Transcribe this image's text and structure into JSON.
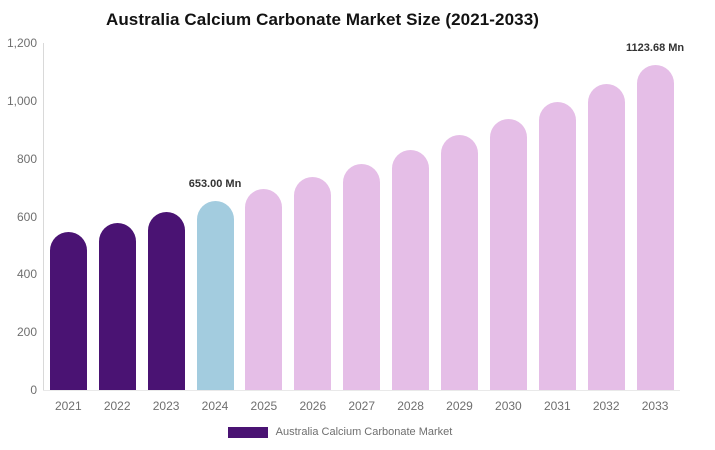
{
  "title": "Australia Calcium Carbonate Market Size (2021-2033)",
  "colors": {
    "historical_bar": "#4A1373",
    "current_bar": "#A3CCDF",
    "forecast_bar": "#E5BEE7",
    "axis_line": "#d9d9d9",
    "tick_text": "#6f6f6f",
    "title_text": "#121212",
    "data_label_text": "#333333"
  },
  "y_axis": {
    "ticks": [
      "1,200",
      "1,000",
      "800",
      "600",
      "400",
      "200",
      "0"
    ]
  },
  "legend": {
    "label": "Australia Calcium Carbonate Market",
    "swatch_color": "#4A1373"
  },
  "chart_data": {
    "type": "bar",
    "title": "Australia Calcium Carbonate Market Size (2021-2033)",
    "xlabel": "",
    "ylabel": "",
    "ylim": [
      0,
      1200
    ],
    "grid": false,
    "legend_position": "bottom",
    "unit": "Mn",
    "categories": [
      "2021",
      "2022",
      "2023",
      "2024",
      "2025",
      "2026",
      "2027",
      "2028",
      "2029",
      "2030",
      "2031",
      "2032",
      "2033"
    ],
    "values": [
      544.9,
      578.8,
      614.8,
      653.0,
      693.6,
      736.7,
      782.5,
      831.2,
      882.8,
      937.7,
      996.0,
      1057.9,
      1123.68
    ],
    "bar_colors": [
      "#4A1373",
      "#4A1373",
      "#4A1373",
      "#A3CCDF",
      "#E5BEE7",
      "#E5BEE7",
      "#E5BEE7",
      "#E5BEE7",
      "#E5BEE7",
      "#E5BEE7",
      "#E5BEE7",
      "#E5BEE7",
      "#E5BEE7"
    ],
    "segments": {
      "historical_years": [
        "2021",
        "2022",
        "2023"
      ],
      "current_year": "2024",
      "forecast_years": [
        "2025",
        "2026",
        "2027",
        "2028",
        "2029",
        "2030",
        "2031",
        "2032",
        "2033"
      ]
    },
    "data_labels": [
      {
        "index": 3,
        "text": "653.00 Mn"
      },
      {
        "index": 12,
        "text": "1123.68 Mn"
      }
    ]
  }
}
